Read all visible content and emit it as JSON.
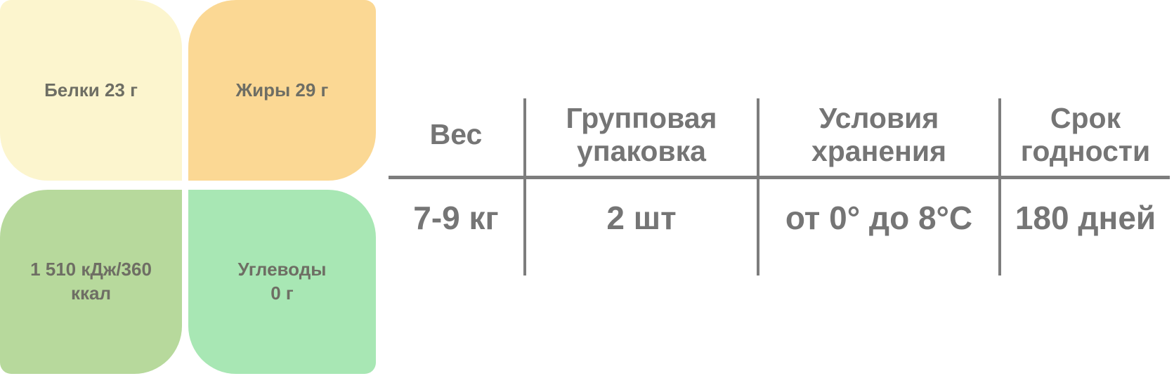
{
  "tiles": [
    {
      "id": "proteins",
      "lines": [
        "Белки 23 г"
      ],
      "bg": "#FCF5CE"
    },
    {
      "id": "fats",
      "lines": [
        "Жиры 29 г"
      ],
      "bg": "#FBD894"
    },
    {
      "id": "energy",
      "lines": [
        "1 510 кДж/360",
        "ккал"
      ],
      "bg": "#B7D99C"
    },
    {
      "id": "carbs",
      "lines": [
        "Углеводы",
        "0 г"
      ],
      "bg": "#A8E7B4"
    }
  ],
  "table": {
    "columns": [
      {
        "header": [
          "Вес"
        ],
        "value": "7-9 кг"
      },
      {
        "header": [
          "Групповая",
          "упаковка"
        ],
        "value": "2 шт"
      },
      {
        "header": [
          "Условия",
          "хранения"
        ],
        "value": "от 0° до 8°С"
      },
      {
        "header": [
          "Срок",
          "годности"
        ],
        "value": "180 дней"
      }
    ]
  },
  "colors": {
    "tile_text": "#6E6E64",
    "table_text": "#757575",
    "divider": "#7D7D7D",
    "proteins_bg": "#FCF5CE",
    "fats_bg": "#FBD894",
    "energy_bg": "#B7D99C",
    "carbs_bg": "#A8E7B4"
  }
}
